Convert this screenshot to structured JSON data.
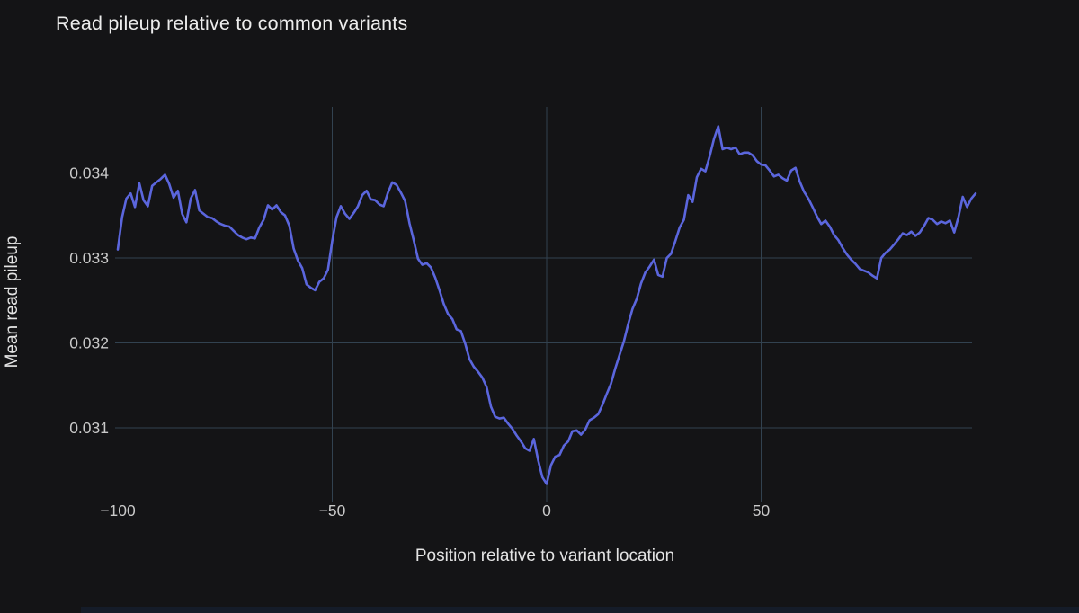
{
  "title": "Read pileup relative to common variants",
  "colors": {
    "background": "#141416",
    "line": "#5b66dd",
    "grid": "#324250",
    "title_text": "#ececec",
    "axis_title_text": "#e4e4e4",
    "tick_text": "#c9c9c9",
    "bottom_strip": "#151c29"
  },
  "chart_data": {
    "type": "line",
    "title": "Read pileup relative to common variants",
    "xlabel": "Position relative to variant location",
    "ylabel": "Mean read pileup",
    "x_ticks": [
      -100,
      -50,
      0,
      50
    ],
    "x_tick_labels": [
      "−100",
      "−50",
      "0",
      "50"
    ],
    "y_ticks": [
      0.031,
      0.032,
      0.033,
      0.034
    ],
    "y_tick_labels": [
      "0.031",
      "0.032",
      "0.033",
      "0.034"
    ],
    "xlim": [
      -100,
      100
    ],
    "ylim": [
      0.03005,
      0.03475
    ],
    "grid": "on",
    "legend": "none",
    "x_start": -100,
    "x_step": 1,
    "n_points": 201,
    "series": [
      {
        "name": "mean-read-pileup",
        "values": [
          0.0331,
          0.03348,
          0.0337,
          0.03376,
          0.0336,
          0.03388,
          0.03368,
          0.03361,
          0.03385,
          0.03389,
          0.03393,
          0.03398,
          0.03387,
          0.03371,
          0.03379,
          0.03352,
          0.03342,
          0.0337,
          0.0338,
          0.03356,
          0.03352,
          0.03348,
          0.03347,
          0.03343,
          0.0334,
          0.03338,
          0.03337,
          0.03332,
          0.03327,
          0.03324,
          0.03322,
          0.03324,
          0.03323,
          0.03336,
          0.03345,
          0.03362,
          0.03357,
          0.03362,
          0.03354,
          0.0335,
          0.03338,
          0.03311,
          0.03297,
          0.03288,
          0.03269,
          0.03265,
          0.03262,
          0.03272,
          0.03276,
          0.03286,
          0.0332,
          0.03348,
          0.03361,
          0.03352,
          0.03346,
          0.03353,
          0.03361,
          0.03374,
          0.03379,
          0.03369,
          0.03368,
          0.03363,
          0.03361,
          0.03377,
          0.03389,
          0.03386,
          0.03377,
          0.03367,
          0.03341,
          0.03321,
          0.03299,
          0.03292,
          0.03294,
          0.03289,
          0.03277,
          0.03262,
          0.03246,
          0.03234,
          0.03228,
          0.03216,
          0.03214,
          0.03199,
          0.03181,
          0.03172,
          0.03166,
          0.03159,
          0.03148,
          0.03125,
          0.03113,
          0.03111,
          0.03112,
          0.03105,
          0.03099,
          0.03091,
          0.03084,
          0.03076,
          0.03073,
          0.03087,
          0.03062,
          0.03042,
          0.03034,
          0.03056,
          0.03066,
          0.03068,
          0.03079,
          0.03084,
          0.03096,
          0.03097,
          0.03092,
          0.03098,
          0.03109,
          0.03112,
          0.03116,
          0.03127,
          0.0314,
          0.03152,
          0.0317,
          0.03186,
          0.03202,
          0.03222,
          0.0324,
          0.03252,
          0.0327,
          0.03283,
          0.0329,
          0.03298,
          0.0328,
          0.03278,
          0.033,
          0.03305,
          0.0332,
          0.03336,
          0.03345,
          0.03374,
          0.03366,
          0.03395,
          0.03405,
          0.03402,
          0.0342,
          0.0344,
          0.03455,
          0.03428,
          0.0343,
          0.03428,
          0.0343,
          0.03422,
          0.03424,
          0.03424,
          0.03421,
          0.03414,
          0.0341,
          0.03409,
          0.03403,
          0.03396,
          0.03398,
          0.03394,
          0.03391,
          0.03403,
          0.03406,
          0.0339,
          0.03378,
          0.0337,
          0.0336,
          0.03349,
          0.0334,
          0.03344,
          0.03337,
          0.03327,
          0.03321,
          0.03312,
          0.03304,
          0.03298,
          0.03293,
          0.03287,
          0.03285,
          0.03283,
          0.03279,
          0.03276,
          0.033,
          0.03306,
          0.0331,
          0.03316,
          0.03322,
          0.03329,
          0.03327,
          0.03331,
          0.03326,
          0.0333,
          0.03338,
          0.03347,
          0.03345,
          0.0334,
          0.03343,
          0.03341,
          0.03344,
          0.0333,
          0.03348,
          0.03372,
          0.0336,
          0.0337,
          0.03376
        ]
      }
    ]
  }
}
